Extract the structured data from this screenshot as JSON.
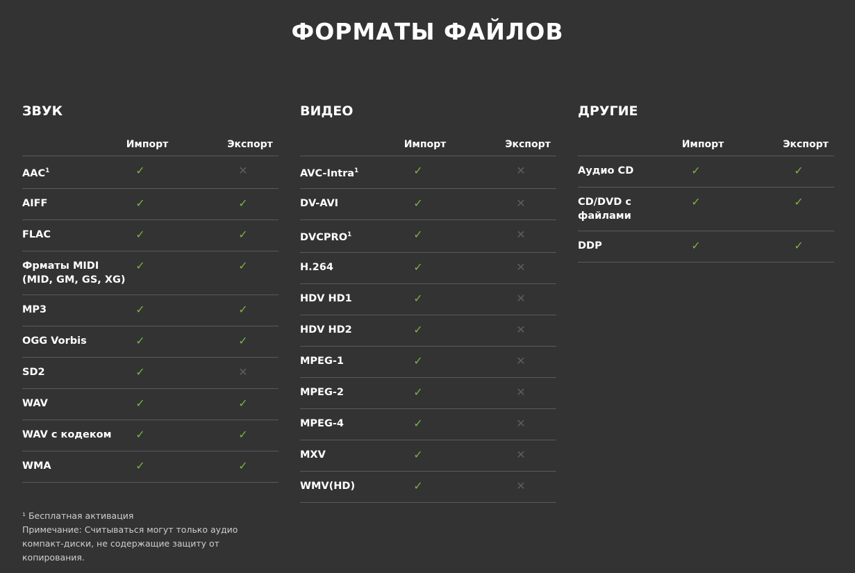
{
  "title": "ФОРМАТЫ ФАЙЛОВ",
  "columns_header": {
    "import": "Импорт",
    "export": "Экспорт"
  },
  "colors": {
    "check": "#7cb342",
    "cross": "#5e5e5e",
    "background": "#333333"
  },
  "sections": [
    {
      "title": "ЗВУК",
      "rows": [
        {
          "name": "AAC",
          "sup": "1",
          "import": true,
          "export": false
        },
        {
          "name": "AIFF",
          "import": true,
          "export": true
        },
        {
          "name": "FLAC",
          "import": true,
          "export": true
        },
        {
          "name": "Фрматы MIDI (MID, GM, GS, XG)",
          "import": true,
          "export": true
        },
        {
          "name": "MP3",
          "import": true,
          "export": true
        },
        {
          "name": "OGG Vorbis",
          "import": true,
          "export": true
        },
        {
          "name": "SD2",
          "import": true,
          "export": false
        },
        {
          "name": "WAV",
          "import": true,
          "export": true
        },
        {
          "name": "WAV с кодеком",
          "import": true,
          "export": true
        },
        {
          "name": "WMA",
          "import": true,
          "export": true
        }
      ]
    },
    {
      "title": "ВИДЕО",
      "rows": [
        {
          "name": "AVC-Intra",
          "sup": "1",
          "import": true,
          "export": false
        },
        {
          "name": "DV-AVI",
          "import": true,
          "export": false
        },
        {
          "name": "DVCPRO",
          "sup": "1",
          "import": true,
          "export": false
        },
        {
          "name": "H.264",
          "import": true,
          "export": false
        },
        {
          "name": "HDV HD1",
          "import": true,
          "export": false
        },
        {
          "name": "HDV HD2",
          "import": true,
          "export": false
        },
        {
          "name": "MPEG-1",
          "import": true,
          "export": false
        },
        {
          "name": "MPEG-2",
          "import": true,
          "export": false
        },
        {
          "name": "MPEG-4",
          "import": true,
          "export": false
        },
        {
          "name": "MXV",
          "import": true,
          "export": false
        },
        {
          "name": "WMV(HD)",
          "import": true,
          "export": false
        }
      ]
    },
    {
      "title": "ДРУГИЕ",
      "rows": [
        {
          "name": "Аудио CD",
          "import": true,
          "export": true
        },
        {
          "name": "CD/DVD с файлами",
          "import": true,
          "export": true
        },
        {
          "name": "DDP",
          "import": true,
          "export": true
        }
      ]
    }
  ],
  "footnotes": [
    "¹ Бесплатная активация",
    "Примечание: Считываться могут только аудио компакт-диски, не содержащие защиту от копирования."
  ]
}
